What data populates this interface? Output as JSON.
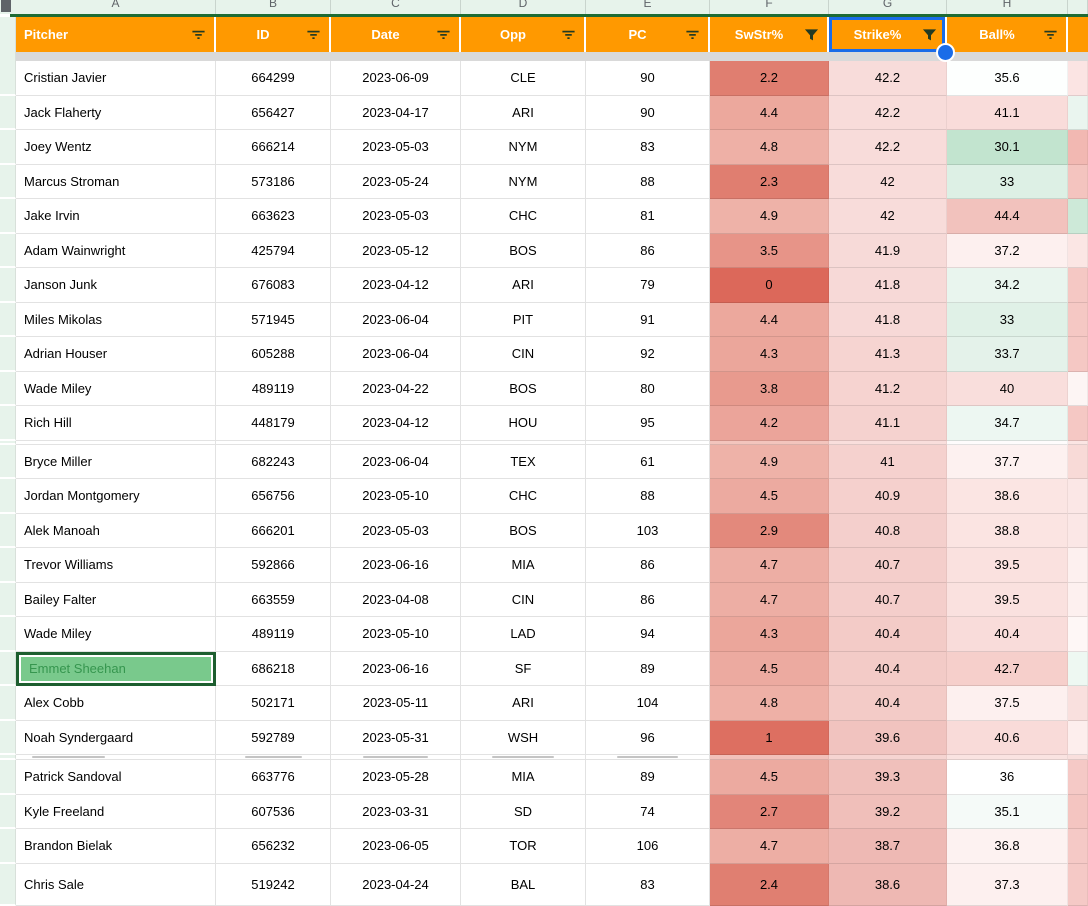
{
  "sheet": {
    "column_letters": [
      "A",
      "B",
      "C",
      "D",
      "E",
      "F",
      "G",
      "H"
    ],
    "colors": {
      "header_bg": "#ff9900",
      "header_text": "#ffffff",
      "selection_blue": "#1a6ce8",
      "frozen_line_green": "#1e6b34",
      "gutter_green": "#e7f3eb",
      "selected_cell_fill": "#79c98c",
      "selected_cell_border": "#1d5e2f",
      "icon_dark": "#223a22"
    },
    "columns": [
      {
        "key": "pitcher",
        "label": "Pitcher",
        "icon": "filter-lines-icon",
        "selected": false
      },
      {
        "key": "id",
        "label": "ID",
        "icon": "filter-lines-icon",
        "selected": false
      },
      {
        "key": "date",
        "label": "Date",
        "icon": "filter-lines-icon",
        "selected": false
      },
      {
        "key": "opp",
        "label": "Opp",
        "icon": "filter-lines-icon",
        "selected": false
      },
      {
        "key": "pc",
        "label": "PC",
        "icon": "filter-lines-icon",
        "selected": false
      },
      {
        "key": "swstr",
        "label": "SwStr%",
        "icon": "filter-funnel-icon",
        "selected": false
      },
      {
        "key": "strike",
        "label": "Strike%",
        "icon": "filter-funnel-icon",
        "selected": true
      },
      {
        "key": "ball",
        "label": "Ball%",
        "icon": "filter-lines-icon",
        "selected": false
      }
    ],
    "rows": [
      {
        "pitcher": "Cristian Javier",
        "id": "664299",
        "date": "2023-06-09",
        "opp": "CLE",
        "pc": "90",
        "swstr": "2.2",
        "strike": "42.2",
        "ball": "35.6",
        "bg": {
          "swstr": "#e07e70",
          "strike": "#f8dcda",
          "ball": "#fdfffe",
          "extra": "#fbe4e3"
        }
      },
      {
        "pitcher": "Jack Flaherty",
        "id": "656427",
        "date": "2023-04-17",
        "opp": "ARI",
        "pc": "90",
        "swstr": "4.4",
        "strike": "42.2",
        "ball": "41.1",
        "bg": {
          "swstr": "#eca89d",
          "strike": "#f8dcda",
          "ball": "#f9dcda",
          "extra": "#eaf5ef"
        }
      },
      {
        "pitcher": "Joey Wentz",
        "id": "666214",
        "date": "2023-05-03",
        "opp": "NYM",
        "pc": "83",
        "swstr": "4.8",
        "strike": "42.2",
        "ball": "30.1",
        "bg": {
          "swstr": "#eeb0a6",
          "strike": "#f8dcda",
          "ball": "#c2e4cf",
          "extra": "#f2b8b2"
        }
      },
      {
        "pitcher": "Marcus Stroman",
        "id": "573186",
        "date": "2023-05-24",
        "opp": "NYM",
        "pc": "88",
        "swstr": "2.3",
        "strike": "42",
        "ball": "33",
        "bg": {
          "swstr": "#e07e70",
          "strike": "#f8dcda",
          "ball": "#ddf0e5",
          "extra": "#f4c4bf"
        }
      },
      {
        "pitcher": "Jake Irvin",
        "id": "663623",
        "date": "2023-05-03",
        "opp": "CHC",
        "pc": "81",
        "swstr": "4.9",
        "strike": "42",
        "ball": "44.4",
        "bg": {
          "swstr": "#eeb2a8",
          "strike": "#f8dcda",
          "ball": "#f2c2bd",
          "extra": "#cde9d8"
        }
      },
      {
        "pitcher": "Adam Wainwright",
        "id": "425794",
        "date": "2023-05-12",
        "opp": "BOS",
        "pc": "86",
        "swstr": "3.5",
        "strike": "41.9",
        "ball": "37.2",
        "bg": {
          "swstr": "#e79488",
          "strike": "#f7dad8",
          "ball": "#fdf0ef",
          "extra": "#fbe6e4"
        }
      },
      {
        "pitcher": "Janson Junk",
        "id": "676083",
        "date": "2023-04-12",
        "opp": "ARI",
        "pc": "79",
        "swstr": "0",
        "strike": "41.8",
        "ball": "34.2",
        "bg": {
          "swstr": "#dc685a",
          "strike": "#f7d9d7",
          "ball": "#e9f5ee",
          "extra": "#f5c8c4"
        }
      },
      {
        "pitcher": "Miles Mikolas",
        "id": "571945",
        "date": "2023-06-04",
        "opp": "PIT",
        "pc": "91",
        "swstr": "4.4",
        "strike": "41.8",
        "ball": "33",
        "bg": {
          "swstr": "#eca89d",
          "strike": "#f7d9d7",
          "ball": "#e0f1e7",
          "extra": "#f5c8c4"
        }
      },
      {
        "pitcher": "Adrian Houser",
        "id": "605288",
        "date": "2023-06-04",
        "opp": "CIN",
        "pc": "92",
        "swstr": "4.3",
        "strike": "41.3",
        "ball": "33.7",
        "bg": {
          "swstr": "#eba69b",
          "strike": "#f6d4d1",
          "ball": "#e4f2ea",
          "extra": "#f5c8c4"
        }
      },
      {
        "pitcher": "Wade Miley",
        "id": "489119",
        "date": "2023-04-22",
        "opp": "BOS",
        "pc": "80",
        "swstr": "3.8",
        "strike": "41.2",
        "ball": "40",
        "bg": {
          "swstr": "#e89a8e",
          "strike": "#f6d3d0",
          "ball": "#f9dedc",
          "extra": "#fdf5f4"
        }
      },
      {
        "pitcher": "Rich Hill",
        "id": "448179",
        "date": "2023-04-12",
        "opp": "HOU",
        "pc": "95",
        "swstr": "4.2",
        "strike": "41.1",
        "ball": "34.7",
        "bg": {
          "swstr": "#eba49a",
          "strike": "#f5d2cf",
          "ball": "#edf7f2",
          "extra": "#f5c8c4"
        }
      },
      {
        "clip": "blank",
        "bg": {
          "swstr": "#f3c5bd",
          "strike": "#f9dedc",
          "ball": "#fefcfc",
          "extra": "#fbe5e3"
        }
      },
      {
        "pitcher": "Bryce Miller",
        "id": "682243",
        "date": "2023-06-04",
        "opp": "TEX",
        "pc": "61",
        "swstr": "4.9",
        "strike": "41",
        "ball": "37.7",
        "bg": {
          "swstr": "#eeb2a8",
          "strike": "#f5d1ce",
          "ball": "#fdf1f0",
          "extra": "#f8dad7"
        }
      },
      {
        "pitcher": "Jordan Montgomery",
        "id": "656756",
        "date": "2023-05-10",
        "opp": "CHC",
        "pc": "88",
        "swstr": "4.5",
        "strike": "40.9",
        "ball": "38.6",
        "bg": {
          "swstr": "#ecaaa0",
          "strike": "#f5d0cd",
          "ball": "#fbe5e3",
          "extra": "#fbe7e6"
        }
      },
      {
        "pitcher": "Alek Manoah",
        "id": "666201",
        "date": "2023-05-03",
        "opp": "BOS",
        "pc": "103",
        "swstr": "2.9",
        "strike": "40.8",
        "ball": "38.8",
        "bg": {
          "swstr": "#e3897c",
          "strike": "#f4cfcc",
          "ball": "#fbe4e2",
          "extra": "#fbe7e6"
        }
      },
      {
        "pitcher": "Trevor Williams",
        "id": "592866",
        "date": "2023-06-16",
        "opp": "MIA",
        "pc": "86",
        "swstr": "4.7",
        "strike": "40.7",
        "ball": "39.5",
        "bg": {
          "swstr": "#edaea4",
          "strike": "#f4cecb",
          "ball": "#fae1df",
          "extra": "#fdf0ef"
        }
      },
      {
        "pitcher": "Bailey Falter",
        "id": "663559",
        "date": "2023-04-08",
        "opp": "CIN",
        "pc": "86",
        "swstr": "4.7",
        "strike": "40.7",
        "ball": "39.5",
        "bg": {
          "swstr": "#edaea4",
          "strike": "#f4cecb",
          "ball": "#fae1df",
          "extra": "#fdf0ef"
        }
      },
      {
        "pitcher": "Wade Miley",
        "id": "489119",
        "date": "2023-05-10",
        "opp": "LAD",
        "pc": "94",
        "swstr": "4.3",
        "strike": "40.4",
        "ball": "40.4",
        "bg": {
          "swstr": "#eba69b",
          "strike": "#f3cbc7",
          "ball": "#f9dcda",
          "extra": "#fef7f6"
        }
      },
      {
        "pitcher": "Emmet Sheehan",
        "id": "686218",
        "date": "2023-06-16",
        "opp": "SF",
        "pc": "89",
        "swstr": "4.5",
        "strike": "40.4",
        "ball": "42.7",
        "selected": true,
        "bg": {
          "swstr": "#ecaaa0",
          "strike": "#f3cbc7",
          "ball": "#f6cfcb",
          "extra": "#eef8f2"
        }
      },
      {
        "pitcher": "Alex Cobb",
        "id": "502171",
        "date": "2023-05-11",
        "opp": "ARI",
        "pc": "104",
        "swstr": "4.8",
        "strike": "40.4",
        "ball": "37.5",
        "bg": {
          "swstr": "#eeb0a6",
          "strike": "#f3cbc7",
          "ball": "#fdf0ef",
          "extra": "#f9e0de"
        }
      },
      {
        "pitcher": "Noah Syndergaard",
        "id": "592789",
        "date": "2023-05-31",
        "opp": "WSH",
        "pc": "96",
        "swstr": "1",
        "strike": "39.6",
        "ball": "40.6",
        "bg": {
          "swstr": "#dd6f61",
          "strike": "#f1c3bf",
          "ball": "#f9dbd9",
          "extra": "#fdeeed"
        }
      },
      {
        "clip": "ghost",
        "bg": {
          "swstr": "#f2c0ba",
          "strike": "#f6d4d1",
          "ball": "#fae3e1",
          "extra": "#f9dfdd"
        }
      },
      {
        "pitcher": "Patrick Sandoval",
        "id": "663776",
        "date": "2023-05-28",
        "opp": "MIA",
        "pc": "89",
        "swstr": "4.5",
        "strike": "39.3",
        "ball": "36",
        "bg": {
          "swstr": "#ecaaa0",
          "strike": "#f0c0bb",
          "ball": "#ffffff",
          "extra": "#f5c9c6"
        }
      },
      {
        "pitcher": "Kyle Freeland",
        "id": "607536",
        "date": "2023-03-31",
        "opp": "SD",
        "pc": "74",
        "swstr": "2.7",
        "strike": "39.2",
        "ball": "35.1",
        "bg": {
          "swstr": "#e28579",
          "strike": "#f0bfba",
          "ball": "#f5faf8",
          "extra": "#f4c5c1"
        }
      },
      {
        "pitcher": "Brandon Bielak",
        "id": "656232",
        "date": "2023-06-05",
        "opp": "TOR",
        "pc": "106",
        "swstr": "4.7",
        "strike": "38.7",
        "ball": "36.8",
        "bg": {
          "swstr": "#edaea4",
          "strike": "#eeb9b4",
          "ball": "#fdf2f1",
          "extra": "#f5c9c6"
        }
      },
      {
        "pitcher": "Chris Sale",
        "id": "519242",
        "date": "2023-04-24",
        "opp": "BAL",
        "pc": "83",
        "swstr": "2.4",
        "strike": "38.6",
        "ball": "37.3",
        "last": true,
        "bg": {
          "swstr": "#e07f71",
          "strike": "#eeb8b3",
          "ball": "#fdf0ef",
          "extra": "#f5c9c6"
        }
      }
    ]
  }
}
